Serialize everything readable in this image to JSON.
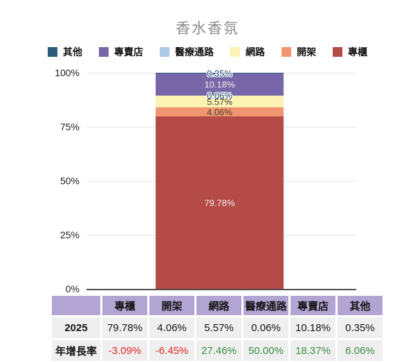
{
  "title": "香水香氛",
  "legend": [
    {
      "label": "其他",
      "color": "#2d5d7c"
    },
    {
      "label": "專賣店",
      "color": "#7766a8"
    },
    {
      "label": "醫療通路",
      "color": "#aac9e9"
    },
    {
      "label": "網路",
      "color": "#fbf2b4"
    },
    {
      "label": "開架",
      "color": "#f09570"
    },
    {
      "label": "專櫃",
      "color": "#b44b47"
    }
  ],
  "chart_data": {
    "type": "bar",
    "stacked": true,
    "title": "香水香氛",
    "categories": [
      "2025"
    ],
    "series": [
      {
        "name": "其他",
        "value": 0.35,
        "label": "0.35%",
        "color": "#2d5d7c",
        "label_style": "outlined"
      },
      {
        "name": "專賣店",
        "value": 10.18,
        "label": "10.18%",
        "color": "#7766a8",
        "label_style": "light"
      },
      {
        "name": "醫療通路",
        "value": 0.06,
        "label": "0.06%",
        "color": "#aac9e9",
        "label_style": "outlined"
      },
      {
        "name": "網路",
        "value": 5.57,
        "label": "5.57%",
        "color": "#fbf2b4",
        "label_style": "dark"
      },
      {
        "name": "開架",
        "value": 4.06,
        "label": "4.06%",
        "color": "#f09570",
        "label_style": "dark"
      },
      {
        "name": "專櫃",
        "value": 79.78,
        "label": "79.78%",
        "color": "#b44b47",
        "label_style": "light"
      }
    ],
    "yticks": [
      {
        "label": "100%",
        "value": 100
      },
      {
        "label": "75%",
        "value": 75
      },
      {
        "label": "50%",
        "value": 50
      },
      {
        "label": "25%",
        "value": 25
      },
      {
        "label": "0%",
        "value": 0
      }
    ],
    "ylim": [
      0,
      100
    ],
    "grid": true,
    "legend_position": "top"
  },
  "table": {
    "header": [
      "",
      "專櫃",
      "開架",
      "網路",
      "醫療通路",
      "專賣店",
      "其他"
    ],
    "rows": [
      {
        "label": "2025",
        "values": [
          "79.78%",
          "4.06%",
          "5.57%",
          "0.06%",
          "10.18%",
          "0.35%"
        ],
        "value_colors": [
          "#141414",
          "#141414",
          "#141414",
          "#141414",
          "#141414",
          "#141414"
        ]
      },
      {
        "label": "年增長率",
        "values": [
          "-3.09%",
          "-6.45%",
          "27.46%",
          "50.00%",
          "18.37%",
          "6.06%"
        ],
        "value_colors": [
          "#e12626",
          "#e12626",
          "#3c8d40",
          "#3c8d40",
          "#3c8d40",
          "#3c8d40"
        ]
      }
    ]
  },
  "colors": {
    "negative_growth": "#e12626",
    "positive_growth": "#3c8d40",
    "table_header_bg": "#b3a5d3",
    "table_row_bg": "#efefef",
    "title_text": "#8b8b8b"
  }
}
